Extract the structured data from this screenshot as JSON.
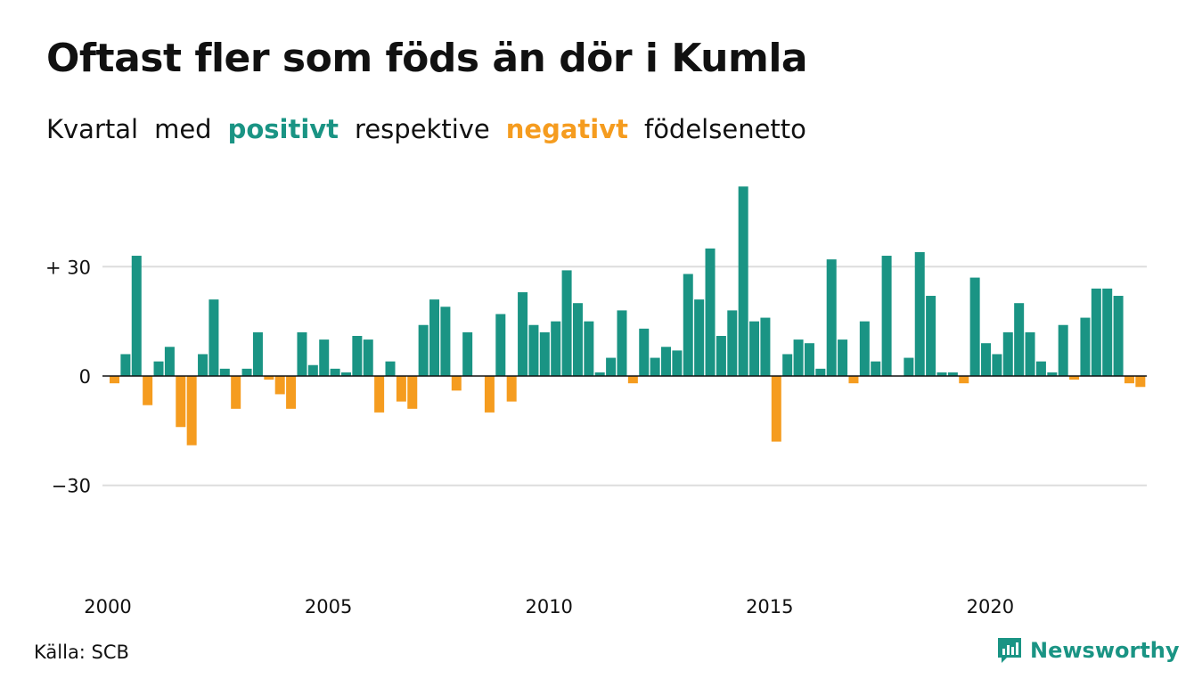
{
  "title": "Oftast fler som föds än dör i Kumla",
  "subtitle": {
    "part1": "Kvartal",
    "part2": "med",
    "positive": "positivt",
    "part3": "respektive",
    "negative": "negativt",
    "part4": "födelsenetto"
  },
  "source": "Källa: SCB",
  "brand": {
    "name": "Newsworthy",
    "icon": "bar-chart-bubble-icon"
  },
  "colors": {
    "positive": "#1a9484",
    "negative": "#f59c1f",
    "grid": "#dddddd",
    "axis": "#111111"
  },
  "chart_data": {
    "type": "bar",
    "ylim": [
      -50,
      52
    ],
    "yticks": [
      {
        "value": 30,
        "label": "+ 30"
      },
      {
        "value": 0,
        "label": "0"
      },
      {
        "value": -30,
        "label": "−30"
      }
    ],
    "xticks": [
      {
        "value": 2000,
        "label": "2000"
      },
      {
        "value": 2005,
        "label": "2005"
      },
      {
        "value": 2010,
        "label": "2010"
      },
      {
        "value": 2015,
        "label": "2015"
      },
      {
        "value": 2020,
        "label": "2020"
      }
    ],
    "x_start": "2000 Q1",
    "values": [
      -2,
      6,
      33,
      -8,
      4,
      8,
      -14,
      -19,
      6,
      21,
      2,
      -9,
      2,
      12,
      -1,
      -5,
      -9,
      12,
      3,
      10,
      2,
      1,
      11,
      10,
      -10,
      4,
      -7,
      -9,
      14,
      21,
      19,
      -4,
      12,
      0,
      -10,
      17,
      -7,
      23,
      14,
      12,
      15,
      29,
      20,
      15,
      1,
      5,
      18,
      -2,
      13,
      5,
      8,
      7,
      28,
      21,
      35,
      11,
      18,
      52,
      15,
      16,
      -18,
      6,
      10,
      9,
      2,
      32,
      10,
      -2,
      15,
      4,
      33,
      0,
      5,
      34,
      22,
      1,
      1,
      -2,
      27,
      9,
      6,
      12,
      20,
      12,
      4,
      1,
      14,
      -1,
      16,
      24,
      24,
      22,
      -2,
      -3
    ]
  }
}
